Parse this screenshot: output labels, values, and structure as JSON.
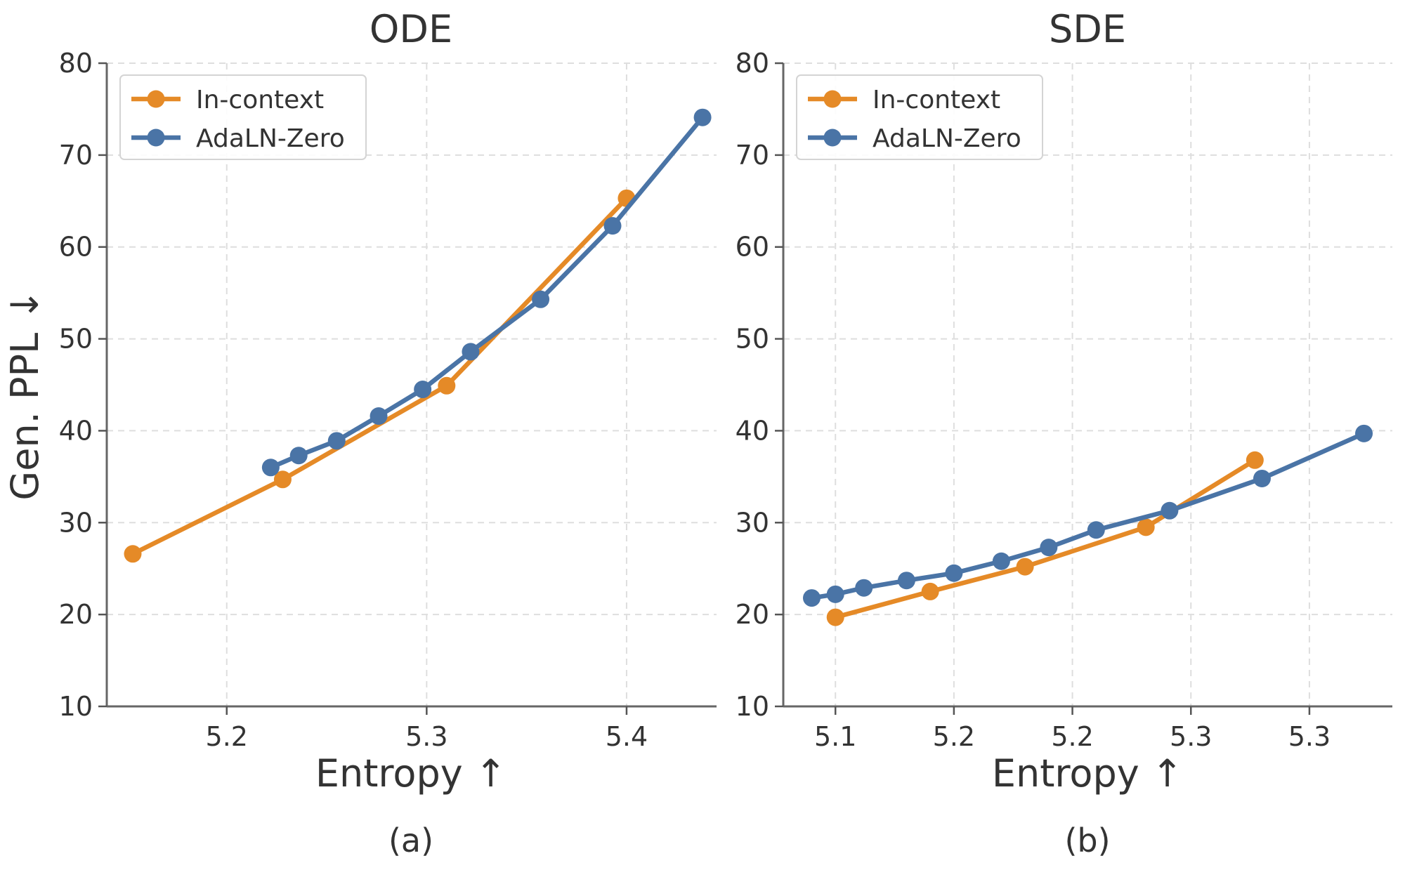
{
  "chart_data": [
    {
      "type": "line",
      "panel": "(a)",
      "title": "ODE",
      "xlabel": "Entropy ↑",
      "ylabel": "Gen. PPL ↓",
      "xlim": [
        5.14,
        5.445
      ],
      "ylim": [
        10,
        80
      ],
      "xticks": [
        5.2,
        5.3,
        5.4
      ],
      "xtick_labels": [
        "5.2",
        "5.3",
        "5.4"
      ],
      "yticks": [
        10,
        20,
        30,
        40,
        50,
        60,
        70,
        80
      ],
      "ytick_labels": [
        "10",
        "20",
        "30",
        "40",
        "50",
        "60",
        "70",
        "80"
      ],
      "grid": true,
      "legend": "top-left",
      "series": [
        {
          "name": "In-context",
          "color": "#e58a27",
          "x": [
            5.153,
            5.228,
            5.31,
            5.4
          ],
          "y": [
            26.6,
            34.7,
            44.9,
            65.3
          ]
        },
        {
          "name": "AdaLN-Zero",
          "color": "#4a74a6",
          "x": [
            5.222,
            5.236,
            5.255,
            5.276,
            5.298,
            5.322,
            5.357,
            5.393,
            5.438
          ],
          "y": [
            36.0,
            37.3,
            38.9,
            41.6,
            44.5,
            48.6,
            54.3,
            62.3,
            74.1
          ]
        }
      ]
    },
    {
      "type": "line",
      "panel": "(b)",
      "title": "SDE",
      "xlabel": "Entropy ↑",
      "ylabel": "",
      "xlim": [
        5.068,
        5.325
      ],
      "ylim": [
        10,
        80
      ],
      "xticks": [
        5.09,
        5.14,
        5.19,
        5.24,
        5.29
      ],
      "xtick_labels": [
        "5.1",
        "5.2",
        "5.2",
        "5.3",
        "5.3"
      ],
      "yticks": [
        10,
        20,
        30,
        40,
        50,
        60,
        70,
        80
      ],
      "ytick_labels": [
        "10",
        "20",
        "30",
        "40",
        "50",
        "60",
        "70",
        "80"
      ],
      "grid": true,
      "legend": "top-left",
      "series": [
        {
          "name": "In-context",
          "color": "#e58a27",
          "x": [
            5.09,
            5.13,
            5.17,
            5.221,
            5.267
          ],
          "y": [
            19.7,
            22.5,
            25.2,
            29.5,
            36.8
          ]
        },
        {
          "name": "AdaLN-Zero",
          "color": "#4a74a6",
          "x": [
            5.08,
            5.09,
            5.102,
            5.12,
            5.14,
            5.16,
            5.18,
            5.2,
            5.231,
            5.27,
            5.313
          ],
          "y": [
            21.8,
            22.2,
            22.9,
            23.7,
            24.5,
            25.8,
            27.3,
            29.2,
            31.3,
            34.8,
            39.7
          ]
        }
      ]
    }
  ]
}
